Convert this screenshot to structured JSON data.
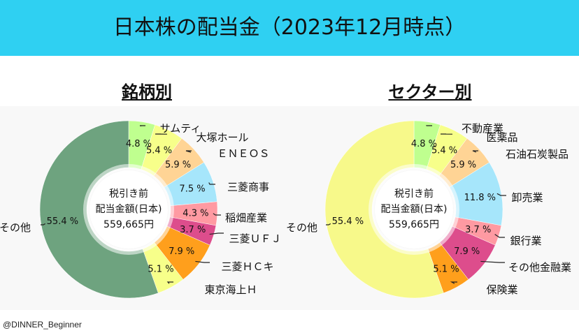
{
  "page": {
    "title": "日本株の配当金（2023年12月時点）",
    "credit": "@DINNER_Beginner"
  },
  "chart_data": [
    {
      "type": "pie",
      "title": "銘柄別",
      "center_label_1": "税引き前",
      "center_label_2": "配当金額(日本)",
      "center_label_3": "559,665円",
      "slices": [
        {
          "name": "サムティ",
          "value": 4.8,
          "label": "4.8 %",
          "color": "#bfff8f"
        },
        {
          "name": "大塚ホール",
          "value": 5.4,
          "label": "5.4 %",
          "color": "#f7ff8a"
        },
        {
          "name": "ＥＮＥＯＳ",
          "value": 5.9,
          "label": "5.9 %",
          "color": "#ffd495"
        },
        {
          "name": "三菱商事",
          "value": 7.5,
          "label": "7.5 %",
          "color": "#a6e6fb"
        },
        {
          "name": "稲畑産業",
          "value": 4.3,
          "label": "4.3 %",
          "color": "#ff9aa2"
        },
        {
          "name": "三菱ＵＦＪ",
          "value": 3.7,
          "label": "3.7 %",
          "color": "#dd4d8c"
        },
        {
          "name": "三菱ＨＣキ",
          "value": 7.9,
          "label": "7.9 %",
          "color": "#ff9f1c"
        },
        {
          "name": "東京海上Ｈ",
          "value": 5.1,
          "label": "5.1 %",
          "color": "#f7ff8a"
        },
        {
          "name": "その他",
          "value": 55.4,
          "label": "55.4 %",
          "color": "#6ea37f"
        }
      ]
    },
    {
      "type": "pie",
      "title": "セクター別",
      "center_label_1": "税引き前",
      "center_label_2": "配当金額(日本)",
      "center_label_3": "559,665円",
      "slices": [
        {
          "name": "不動産業",
          "value": 4.8,
          "label": "4.8 %",
          "color": "#bfff8f"
        },
        {
          "name": "医薬品",
          "value": 5.4,
          "label": "5.4 %",
          "color": "#f7ff8a"
        },
        {
          "name": "石油石炭製品",
          "value": 5.9,
          "label": "5.9 %",
          "color": "#ffd495"
        },
        {
          "name": "卸売業",
          "value": 11.8,
          "label": "11.8 %",
          "color": "#a6e6fb"
        },
        {
          "name": "銀行業",
          "value": 3.7,
          "label": "3.7 %",
          "color": "#ff9aa2"
        },
        {
          "name": "その他金融業",
          "value": 7.9,
          "label": "7.9 %",
          "color": "#dd4d8c"
        },
        {
          "name": "保険業",
          "value": 5.1,
          "label": "5.1 %",
          "color": "#ff9f1c"
        },
        {
          "name": "その他",
          "value": 55.4,
          "label": "55.4 %",
          "color": "#f7f98a"
        }
      ]
    }
  ]
}
